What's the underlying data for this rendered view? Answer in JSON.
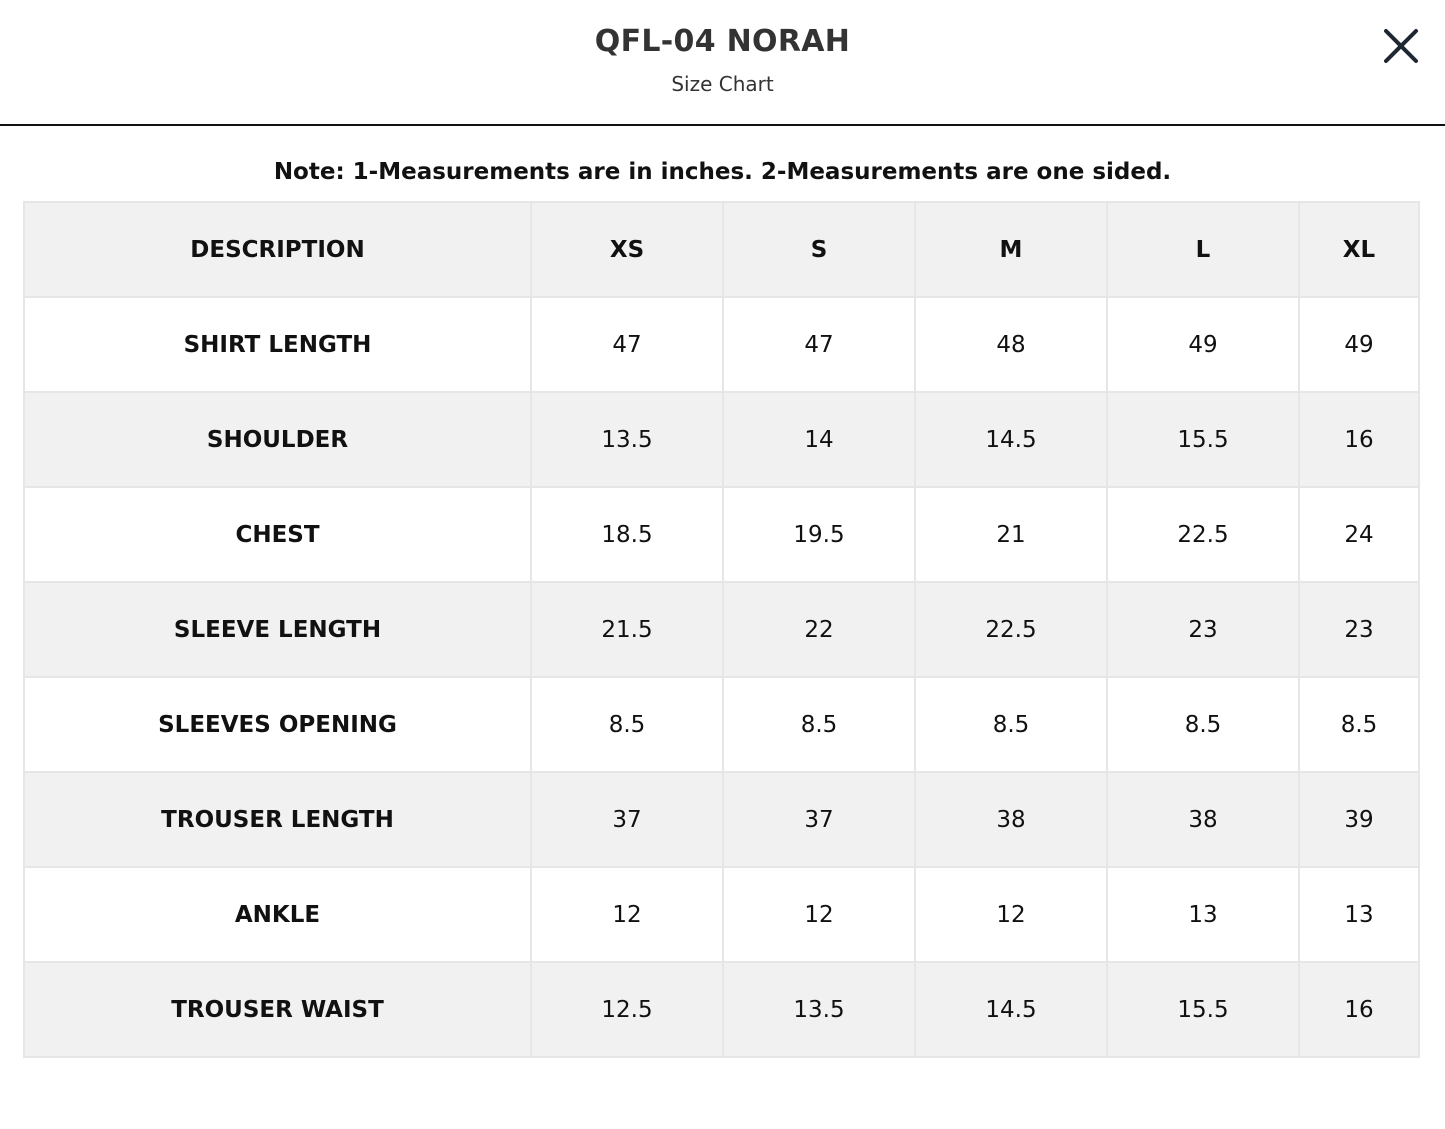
{
  "header": {
    "title": "QFL-04 NORAH",
    "subtitle": "Size Chart"
  },
  "close_icon": "close-x-icon",
  "note": "Note: 1-Measurements are in inches. 2-Measurements are one sided.",
  "table": {
    "columns": [
      "DESCRIPTION",
      "XS",
      "S",
      "M",
      "L",
      "XL"
    ],
    "rows": [
      {
        "label": "SHIRT LENGTH",
        "values": [
          "47",
          "47",
          "48",
          "49",
          "49"
        ]
      },
      {
        "label": "SHOULDER",
        "values": [
          "13.5",
          "14",
          "14.5",
          "15.5",
          "16"
        ]
      },
      {
        "label": "CHEST",
        "values": [
          "18.5",
          "19.5",
          "21",
          "22.5",
          "24"
        ]
      },
      {
        "label": "SLEEVE LENGTH",
        "values": [
          "21.5",
          "22",
          "22.5",
          "23",
          "23"
        ]
      },
      {
        "label": "SLEEVES OPENING",
        "values": [
          "8.5",
          "8.5",
          "8.5",
          "8.5",
          "8.5"
        ]
      },
      {
        "label": "TROUSER LENGTH",
        "values": [
          "37",
          "37",
          "38",
          "38",
          "39"
        ]
      },
      {
        "label": "ANKLE",
        "values": [
          "12",
          "12",
          "12",
          "13",
          "13"
        ]
      },
      {
        "label": "TROUSER WAIST",
        "values": [
          "12.5",
          "13.5",
          "14.5",
          "15.5",
          "16"
        ]
      }
    ]
  },
  "colors": {
    "header_text": "#333333",
    "divider": "#111111",
    "shaded_row": "#f1f1f1",
    "cell_border": "#e6e6e6"
  }
}
